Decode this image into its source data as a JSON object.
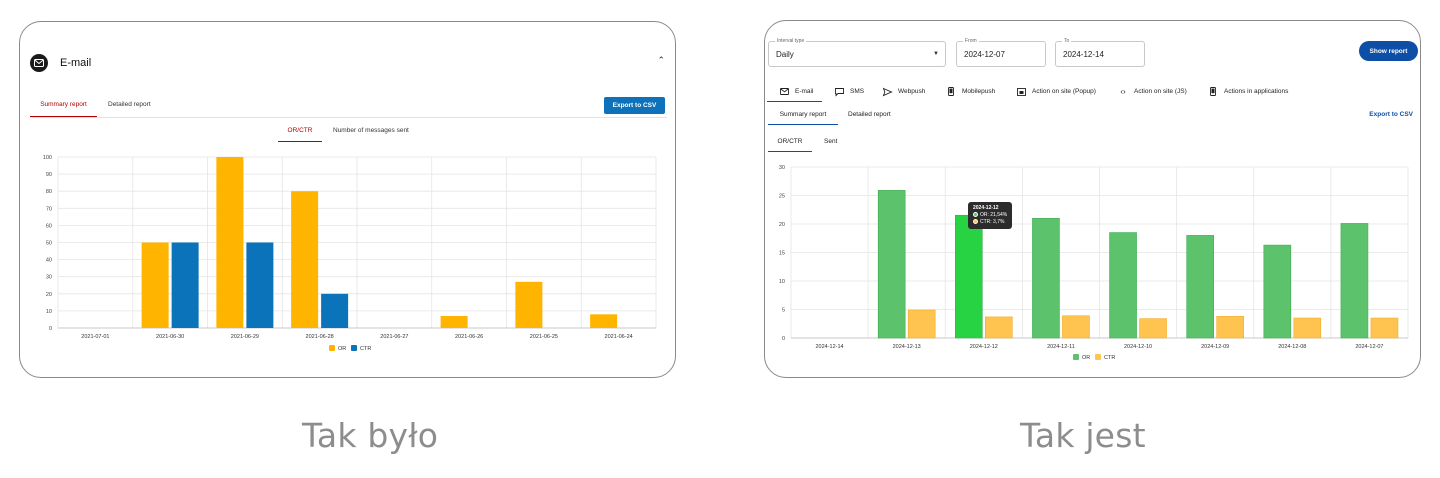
{
  "old_panel": {
    "title": "E-mail",
    "tabs": [
      "Summary report",
      "Detailed report"
    ],
    "export_label": "Export to CSV",
    "subtabs": [
      "OR/CTR",
      "Number of messages sent"
    ],
    "colors": {
      "OR": "#ffb400",
      "CTR": "#0b73b9"
    }
  },
  "new_panel": {
    "interval_type": {
      "label": "Interval type",
      "value": "Daily"
    },
    "from": {
      "label": "From",
      "value": "2024-12-07"
    },
    "to": {
      "label": "To",
      "value": "2024-12-14"
    },
    "show_label": "Show report",
    "channel_tabs": [
      {
        "label": "E-mail",
        "icon": "envelope-icon"
      },
      {
        "label": "SMS",
        "icon": "chat-icon"
      },
      {
        "label": "Webpush",
        "icon": "send-icon"
      },
      {
        "label": "Mobilepush",
        "icon": "phone-icon"
      },
      {
        "label": "Action on site (Popup)",
        "icon": "popup-icon"
      },
      {
        "label": "Action on site (JS)",
        "icon": "code-icon"
      },
      {
        "label": "Actions in applications",
        "icon": "mobile-app-icon"
      }
    ],
    "tabs": [
      "Summary report",
      "Detailed report"
    ],
    "export_label": "Export to CSV",
    "subtabs": [
      "OR/CTR",
      "Sent"
    ],
    "tooltip": {
      "title": "2024-12-12",
      "or_line": "OR: 21,54%",
      "ctr_line": "CTR: 3,7%"
    },
    "colors": {
      "OR": "#5cc26b",
      "OR_highlight": "#27d243",
      "CTR": "#ffc44f"
    }
  },
  "captions": {
    "old": "Tak było",
    "new": "Tak jest"
  },
  "chart_data": [
    {
      "type": "bar",
      "title": "",
      "categories": [
        "2021-07-01",
        "2021-06-30",
        "2021-06-29",
        "2021-06-28",
        "2021-06-27",
        "2021-06-26",
        "2021-06-25",
        "2021-06-24"
      ],
      "series": [
        {
          "name": "OR",
          "values": [
            0,
            50,
            100,
            80,
            0,
            7,
            27,
            8
          ]
        },
        {
          "name": "CTR",
          "values": [
            0,
            50,
            50,
            20,
            0,
            0,
            0,
            0
          ]
        }
      ],
      "ylim": [
        0,
        100
      ],
      "yticks": [
        0,
        10,
        20,
        30,
        40,
        50,
        60,
        70,
        80,
        90,
        100
      ],
      "grid": true,
      "legend": "bottom-center"
    },
    {
      "type": "bar",
      "title": "",
      "categories": [
        "2024-12-14",
        "2024-12-13",
        "2024-12-12",
        "2024-12-11",
        "2024-12-10",
        "2024-12-09",
        "2024-12-08",
        "2024-12-07"
      ],
      "series": [
        {
          "name": "OR",
          "values": [
            0,
            25.9,
            21.54,
            21,
            18.5,
            18,
            16.3,
            20.1
          ]
        },
        {
          "name": "CTR",
          "values": [
            0,
            4.9,
            3.7,
            3.9,
            3.4,
            3.8,
            3.5,
            3.5
          ]
        }
      ],
      "ylim": [
        0,
        30
      ],
      "yticks": [
        0,
        5,
        10,
        15,
        20,
        25,
        30
      ],
      "grid": true,
      "legend": "bottom-center"
    }
  ]
}
